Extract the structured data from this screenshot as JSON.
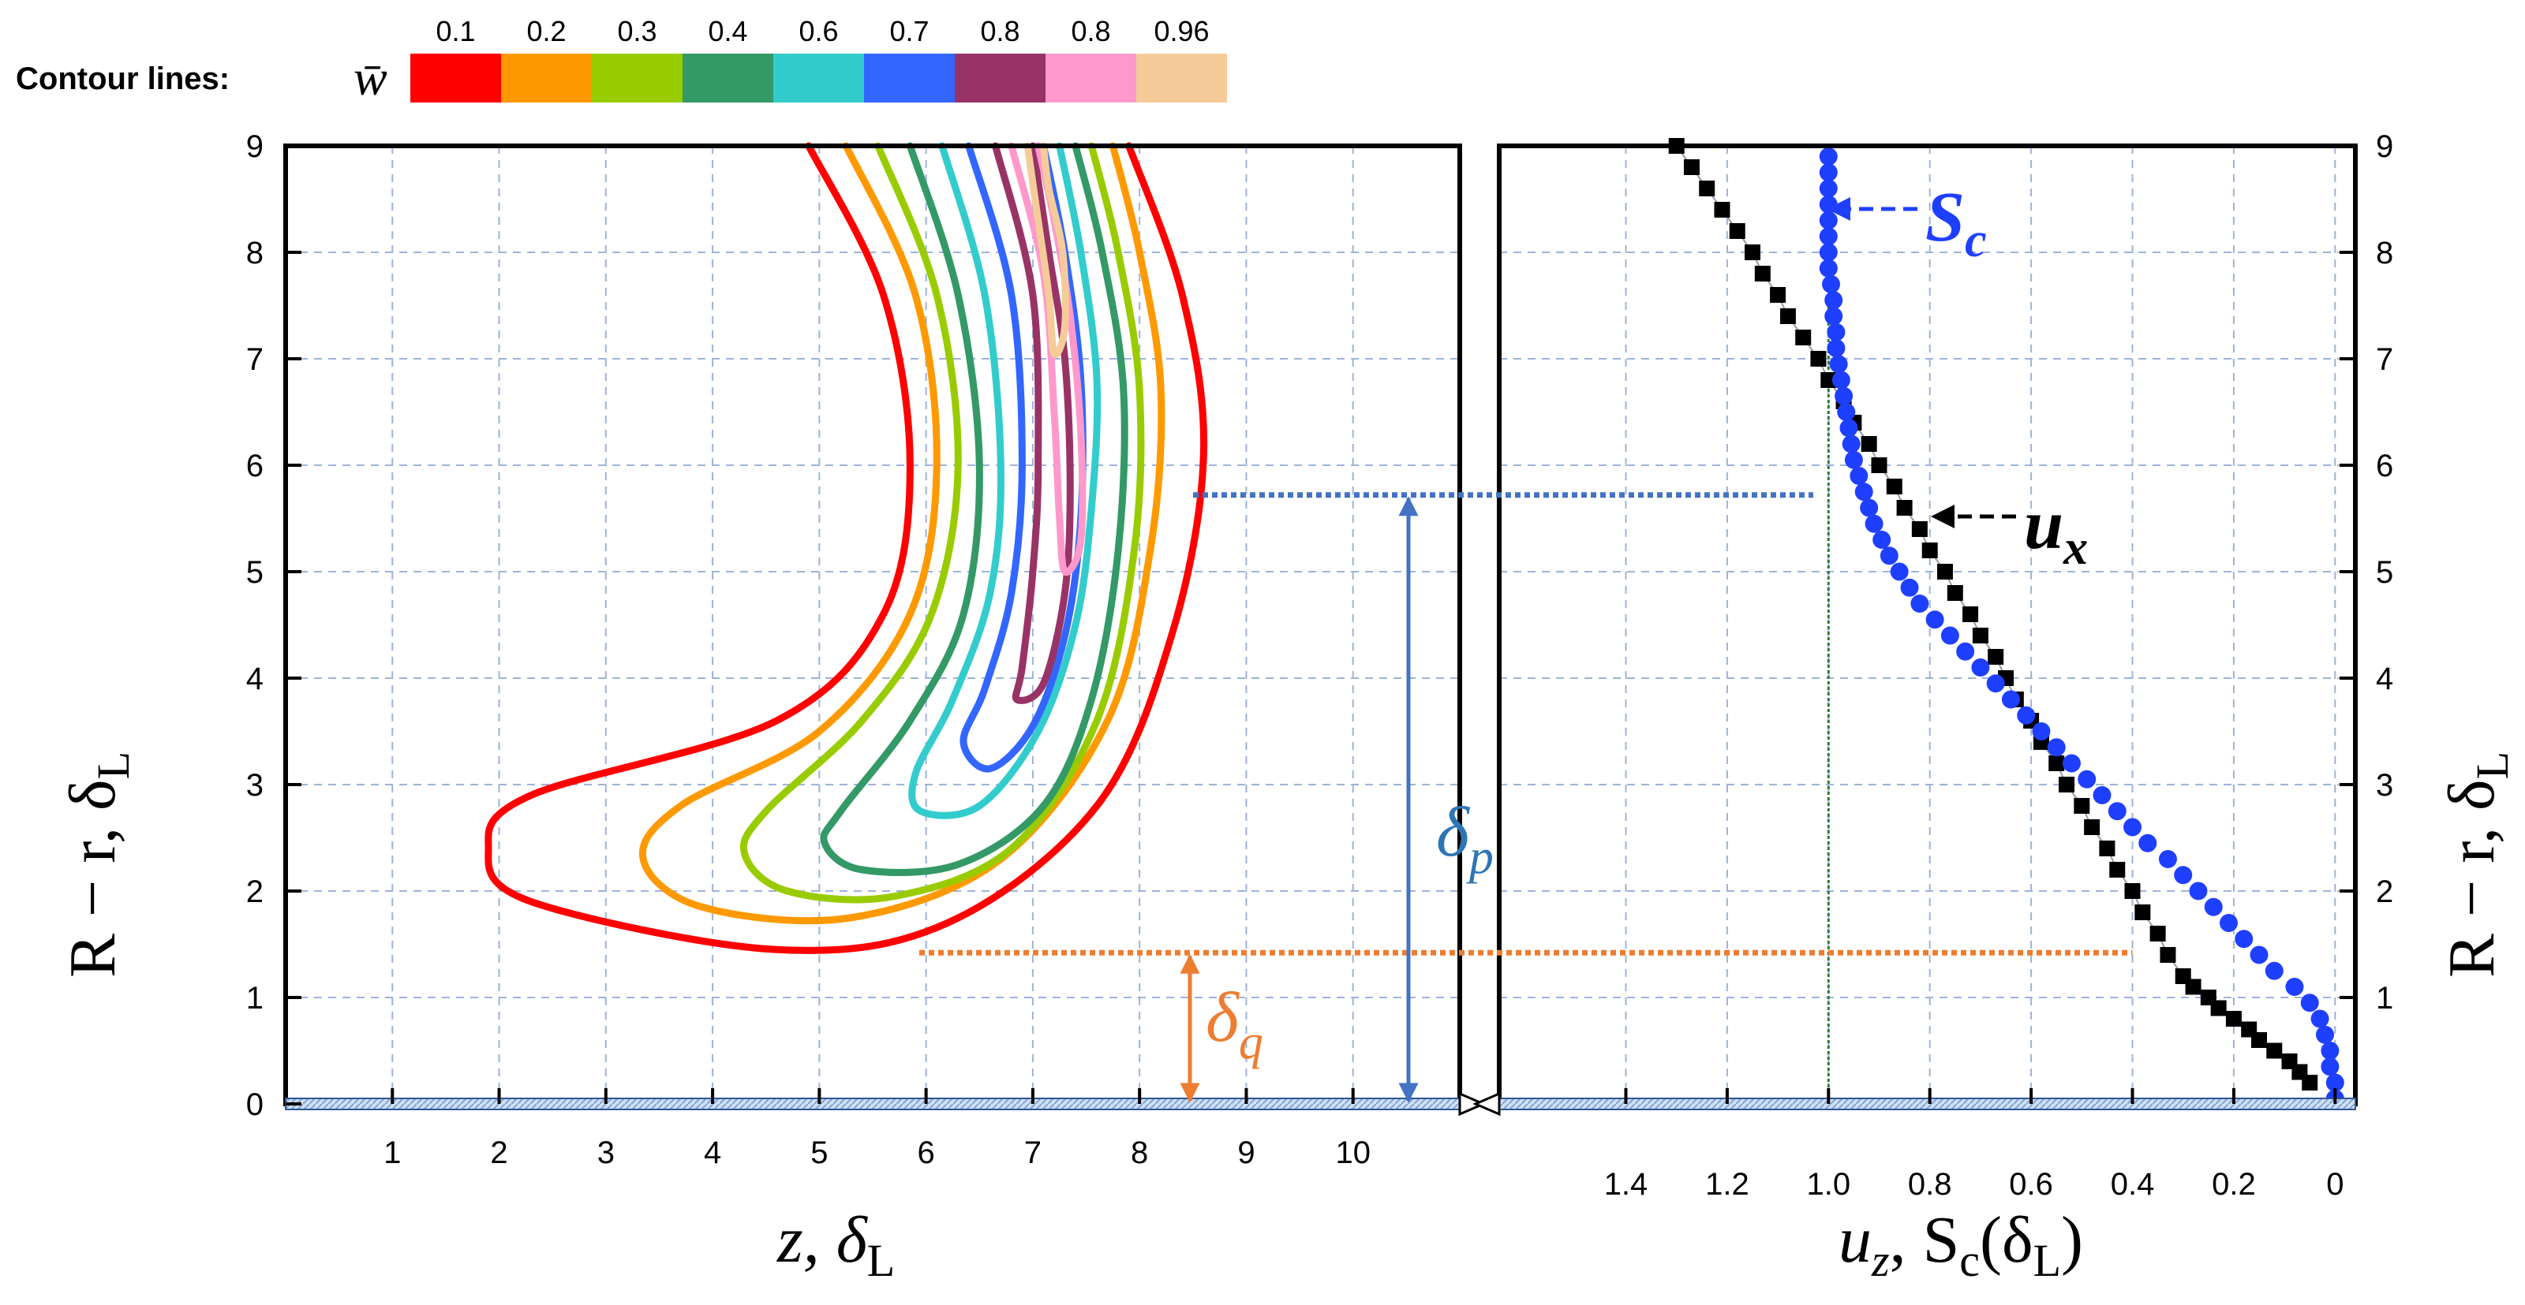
{
  "chart_data": [
    {
      "type": "contour",
      "title": "",
      "xlabel": "z, δL",
      "ylabel": "R − r, δL",
      "xlim": [
        0,
        11
      ],
      "ylim": [
        0,
        9
      ],
      "x_ticks": [
        "1",
        "2",
        "3",
        "4",
        "5",
        "6",
        "7",
        "8",
        "9",
        "10"
      ],
      "y_ticks": [
        "0",
        "1",
        "2",
        "3",
        "4",
        "5",
        "6",
        "7",
        "8",
        "9"
      ],
      "grid": true,
      "legend": {
        "title": "Contour lines:",
        "symbol": "w̄",
        "levels": [
          "0.1",
          "0.2",
          "0.3",
          "0.4",
          "0.6",
          "0.7",
          "0.8",
          "0.8",
          "0.96"
        ],
        "colors": [
          "#ff0000",
          "#ff9900",
          "#99cc00",
          "#339966",
          "#33cccc",
          "#3366ff",
          "#993366",
          "#ff99cc",
          "#f5cc99"
        ]
      },
      "contours": [
        {
          "level": "0.1",
          "color": "#ff0000",
          "points": [
            [
              4.9,
              9
            ],
            [
              5.6,
              7.6
            ],
            [
              5.85,
              6
            ],
            [
              5.6,
              4.6
            ],
            [
              4.6,
              3.6
            ],
            [
              2.3,
              2.9
            ],
            [
              1.9,
              2.4
            ],
            [
              2.3,
              1.9
            ],
            [
              4.6,
              1.45
            ],
            [
              6.2,
              1.7
            ],
            [
              7.6,
              2.8
            ],
            [
              8.3,
              4.4
            ],
            [
              8.6,
              6.1
            ],
            [
              8.4,
              7.6
            ],
            [
              7.9,
              9
            ]
          ]
        },
        {
          "level": "0.2",
          "color": "#ff9900",
          "points": [
            [
              5.25,
              9
            ],
            [
              5.9,
              7.6
            ],
            [
              6.1,
              6
            ],
            [
              5.85,
              4.6
            ],
            [
              5,
              3.5
            ],
            [
              3.7,
              2.8
            ],
            [
              3.35,
              2.3
            ],
            [
              3.9,
              1.85
            ],
            [
              5.3,
              1.75
            ],
            [
              6.7,
              2.3
            ],
            [
              7.7,
              3.6
            ],
            [
              8.1,
              5.2
            ],
            [
              8.2,
              6.7
            ],
            [
              8,
              8
            ],
            [
              7.75,
              9
            ]
          ]
        },
        {
          "level": "0.3",
          "color": "#99cc00",
          "points": [
            [
              5.55,
              9
            ],
            [
              6.1,
              7.6
            ],
            [
              6.3,
              6
            ],
            [
              6.05,
              4.6
            ],
            [
              5.4,
              3.6
            ],
            [
              4.5,
              2.75
            ],
            [
              4.3,
              2.35
            ],
            [
              4.7,
              2
            ],
            [
              5.7,
              1.95
            ],
            [
              6.8,
              2.4
            ],
            [
              7.6,
              3.6
            ],
            [
              7.95,
              5.2
            ],
            [
              8,
              6.7
            ],
            [
              7.8,
              8
            ],
            [
              7.55,
              9
            ]
          ]
        },
        {
          "level": "0.4",
          "color": "#339966",
          "points": [
            [
              5.85,
              9
            ],
            [
              6.3,
              7.6
            ],
            [
              6.5,
              6
            ],
            [
              6.35,
              4.6
            ],
            [
              5.85,
              3.6
            ],
            [
              5.2,
              2.75
            ],
            [
              5.05,
              2.45
            ],
            [
              5.4,
              2.2
            ],
            [
              6.3,
              2.25
            ],
            [
              7.1,
              2.8
            ],
            [
              7.55,
              3.8
            ],
            [
              7.8,
              5.2
            ],
            [
              7.85,
              6.7
            ],
            [
              7.65,
              8
            ],
            [
              7.4,
              9
            ]
          ]
        },
        {
          "level": "0.6",
          "color": "#33cccc",
          "points": [
            [
              6.15,
              9
            ],
            [
              6.55,
              7.6
            ],
            [
              6.7,
              6
            ],
            [
              6.6,
              4.8
            ],
            [
              6.25,
              3.8
            ],
            [
              5.9,
              3.1
            ],
            [
              5.95,
              2.75
            ],
            [
              6.5,
              2.8
            ],
            [
              7.05,
              3.5
            ],
            [
              7.4,
              4.5
            ],
            [
              7.55,
              5.6
            ],
            [
              7.6,
              6.8
            ],
            [
              7.45,
              8
            ],
            [
              7.25,
              9
            ]
          ]
        },
        {
          "level": "0.7",
          "color": "#3366ff",
          "points": [
            [
              6.4,
              9
            ],
            [
              6.8,
              7.6
            ],
            [
              6.9,
              6
            ],
            [
              6.8,
              4.8
            ],
            [
              6.55,
              3.9
            ],
            [
              6.35,
              3.4
            ],
            [
              6.6,
              3.15
            ],
            [
              7,
              3.55
            ],
            [
              7.3,
              4.4
            ],
            [
              7.45,
              5.5
            ],
            [
              7.45,
              6.8
            ],
            [
              7.3,
              8
            ],
            [
              7.1,
              9
            ]
          ]
        },
        {
          "level": "0.8",
          "color": "#993366",
          "points": [
            [
              6.65,
              9
            ],
            [
              7,
              7.6
            ],
            [
              7.05,
              6
            ],
            [
              7,
              5
            ],
            [
              6.9,
              4.1
            ],
            [
              6.85,
              3.8
            ],
            [
              7.1,
              3.95
            ],
            [
              7.3,
              4.8
            ],
            [
              7.35,
              5.8
            ],
            [
              7.3,
              7
            ],
            [
              7.15,
              8
            ],
            [
              7,
              9
            ]
          ]
        },
        {
          "level": "0.8",
          "color": "#ff99cc",
          "points": [
            [
              6.8,
              9
            ],
            [
              7.1,
              7.8
            ],
            [
              7.2,
              6.5
            ],
            [
              7.25,
              5.5
            ],
            [
              7.3,
              5
            ],
            [
              7.45,
              5.3
            ],
            [
              7.45,
              6.3
            ],
            [
              7.35,
              7.4
            ],
            [
              7.2,
              8.3
            ],
            [
              7.05,
              9
            ]
          ]
        },
        {
          "level": "0.96",
          "color": "#f5cc99",
          "points": [
            [
              6.95,
              9
            ],
            [
              7.05,
              8.3
            ],
            [
              7.15,
              7.6
            ],
            [
              7.2,
              7.05
            ],
            [
              7.3,
              7.3
            ],
            [
              7.28,
              8
            ],
            [
              7.15,
              8.6
            ],
            [
              7.1,
              9
            ]
          ]
        }
      ],
      "reference_lines": [
        {
          "name": "delta_p level",
          "y": 5.72,
          "color": "#4472c4"
        },
        {
          "name": "delta_q level",
          "y": 1.42,
          "color": "#ed7d31"
        }
      ],
      "annotations": [
        {
          "text": "δp",
          "color": "#2e75b6",
          "from_y": 0,
          "to_y": 5.72
        },
        {
          "text": "δq",
          "color": "#ed7d31",
          "from_y": 0,
          "to_y": 1.42
        }
      ]
    },
    {
      "type": "scatter",
      "xlabel": "uz, Sc(δL)",
      "ylabel": "R − r, δL",
      "x_axis_reversed": true,
      "xlim": [
        1.65,
        -0.04
      ],
      "ylim": [
        0,
        9
      ],
      "x_ticks": [
        "1.4",
        "1.2",
        "1.0",
        "0.8",
        "0.6",
        "0.4",
        "0.2",
        "0"
      ],
      "y_ticks": [
        "1",
        "2",
        "3",
        "4",
        "5",
        "6",
        "7",
        "8",
        "9"
      ],
      "grid": true,
      "vertical_reference_x": 1.0,
      "series": [
        {
          "name": "ux",
          "label": "ux",
          "marker": "square",
          "color": "#000000",
          "x": [
            1.3,
            1.27,
            1.24,
            1.21,
            1.18,
            1.15,
            1.13,
            1.1,
            1.08,
            1.05,
            1.02,
            1.0,
            0.97,
            0.95,
            0.92,
            0.9,
            0.87,
            0.85,
            0.82,
            0.8,
            0.77,
            0.75,
            0.72,
            0.7,
            0.67,
            0.65,
            0.63,
            0.6,
            0.58,
            0.55,
            0.53,
            0.5,
            0.48,
            0.45,
            0.43,
            0.4,
            0.38,
            0.35,
            0.33,
            0.3,
            0.28,
            0.25,
            0.23,
            0.2,
            0.17,
            0.15,
            0.12,
            0.09,
            0.07,
            0.05
          ],
          "y": [
            9,
            8.8,
            8.6,
            8.4,
            8.2,
            8,
            7.8,
            7.6,
            7.4,
            7.2,
            7,
            6.8,
            6.6,
            6.4,
            6.2,
            6,
            5.8,
            5.6,
            5.4,
            5.2,
            5,
            4.8,
            4.6,
            4.4,
            4.2,
            4,
            3.8,
            3.6,
            3.4,
            3.2,
            3,
            2.8,
            2.6,
            2.4,
            2.2,
            2,
            1.8,
            1.6,
            1.4,
            1.2,
            1.1,
            1,
            0.9,
            0.8,
            0.7,
            0.6,
            0.5,
            0.4,
            0.3,
            0.2
          ]
        },
        {
          "name": "Sc",
          "label": "Sc",
          "marker": "circle",
          "color": "#1f3fff",
          "x": [
            1.0,
            1.0,
            1.0,
            1.0,
            1.0,
            1.0,
            1.0,
            1.0,
            0.995,
            0.99,
            0.99,
            0.985,
            0.985,
            0.98,
            0.975,
            0.97,
            0.965,
            0.96,
            0.955,
            0.95,
            0.94,
            0.93,
            0.92,
            0.91,
            0.895,
            0.88,
            0.86,
            0.84,
            0.82,
            0.79,
            0.76,
            0.73,
            0.7,
            0.67,
            0.64,
            0.61,
            0.58,
            0.55,
            0.52,
            0.49,
            0.46,
            0.43,
            0.4,
            0.37,
            0.33,
            0.3,
            0.27,
            0.24,
            0.21,
            0.18,
            0.15,
            0.12,
            0.08,
            0.05,
            0.03,
            0.02,
            0.01,
            0.01,
            0.0,
            0.0
          ],
          "y": [
            8.9,
            8.75,
            8.6,
            8.45,
            8.3,
            8.15,
            8.0,
            7.85,
            7.7,
            7.55,
            7.4,
            7.25,
            7.1,
            6.95,
            6.8,
            6.65,
            6.5,
            6.35,
            6.2,
            6.05,
            5.9,
            5.75,
            5.6,
            5.45,
            5.3,
            5.15,
            5.0,
            4.85,
            4.7,
            4.55,
            4.4,
            4.25,
            4.1,
            3.95,
            3.8,
            3.65,
            3.5,
            3.35,
            3.2,
            3.05,
            2.9,
            2.75,
            2.6,
            2.45,
            2.3,
            2.15,
            2.0,
            1.85,
            1.7,
            1.55,
            1.4,
            1.25,
            1.1,
            0.95,
            0.8,
            0.65,
            0.5,
            0.35,
            0.2,
            0.05
          ]
        }
      ],
      "labels": {
        "ux": "u",
        "ux_sub": "x",
        "Sc": "S",
        "Sc_sub": "c"
      }
    }
  ],
  "axis_titles": {
    "left_y": "R − r, δ",
    "left_y_sub": "L",
    "right_y": "R − r, δ",
    "right_y_sub": "L",
    "left_x": "z, δ",
    "left_x_sub": "L",
    "right_x_pre": "u",
    "right_x_pre_sub": "z",
    "right_x_mid": ", S",
    "right_x_mid_sub": "c",
    "right_x_post": "(δ",
    "right_x_post_sub": "L",
    "right_x_close": ")"
  },
  "annotation_text": {
    "delta_p": "δ",
    "delta_p_sub": "p",
    "delta_q": "δ",
    "delta_q_sub": "q"
  },
  "colors": {
    "grid": "#9db3d9",
    "axis_bar_fill": "#9dbfe6",
    "delta_p": "#4472c4",
    "delta_q": "#ed7d31",
    "ref_green": "#2e7d32"
  }
}
